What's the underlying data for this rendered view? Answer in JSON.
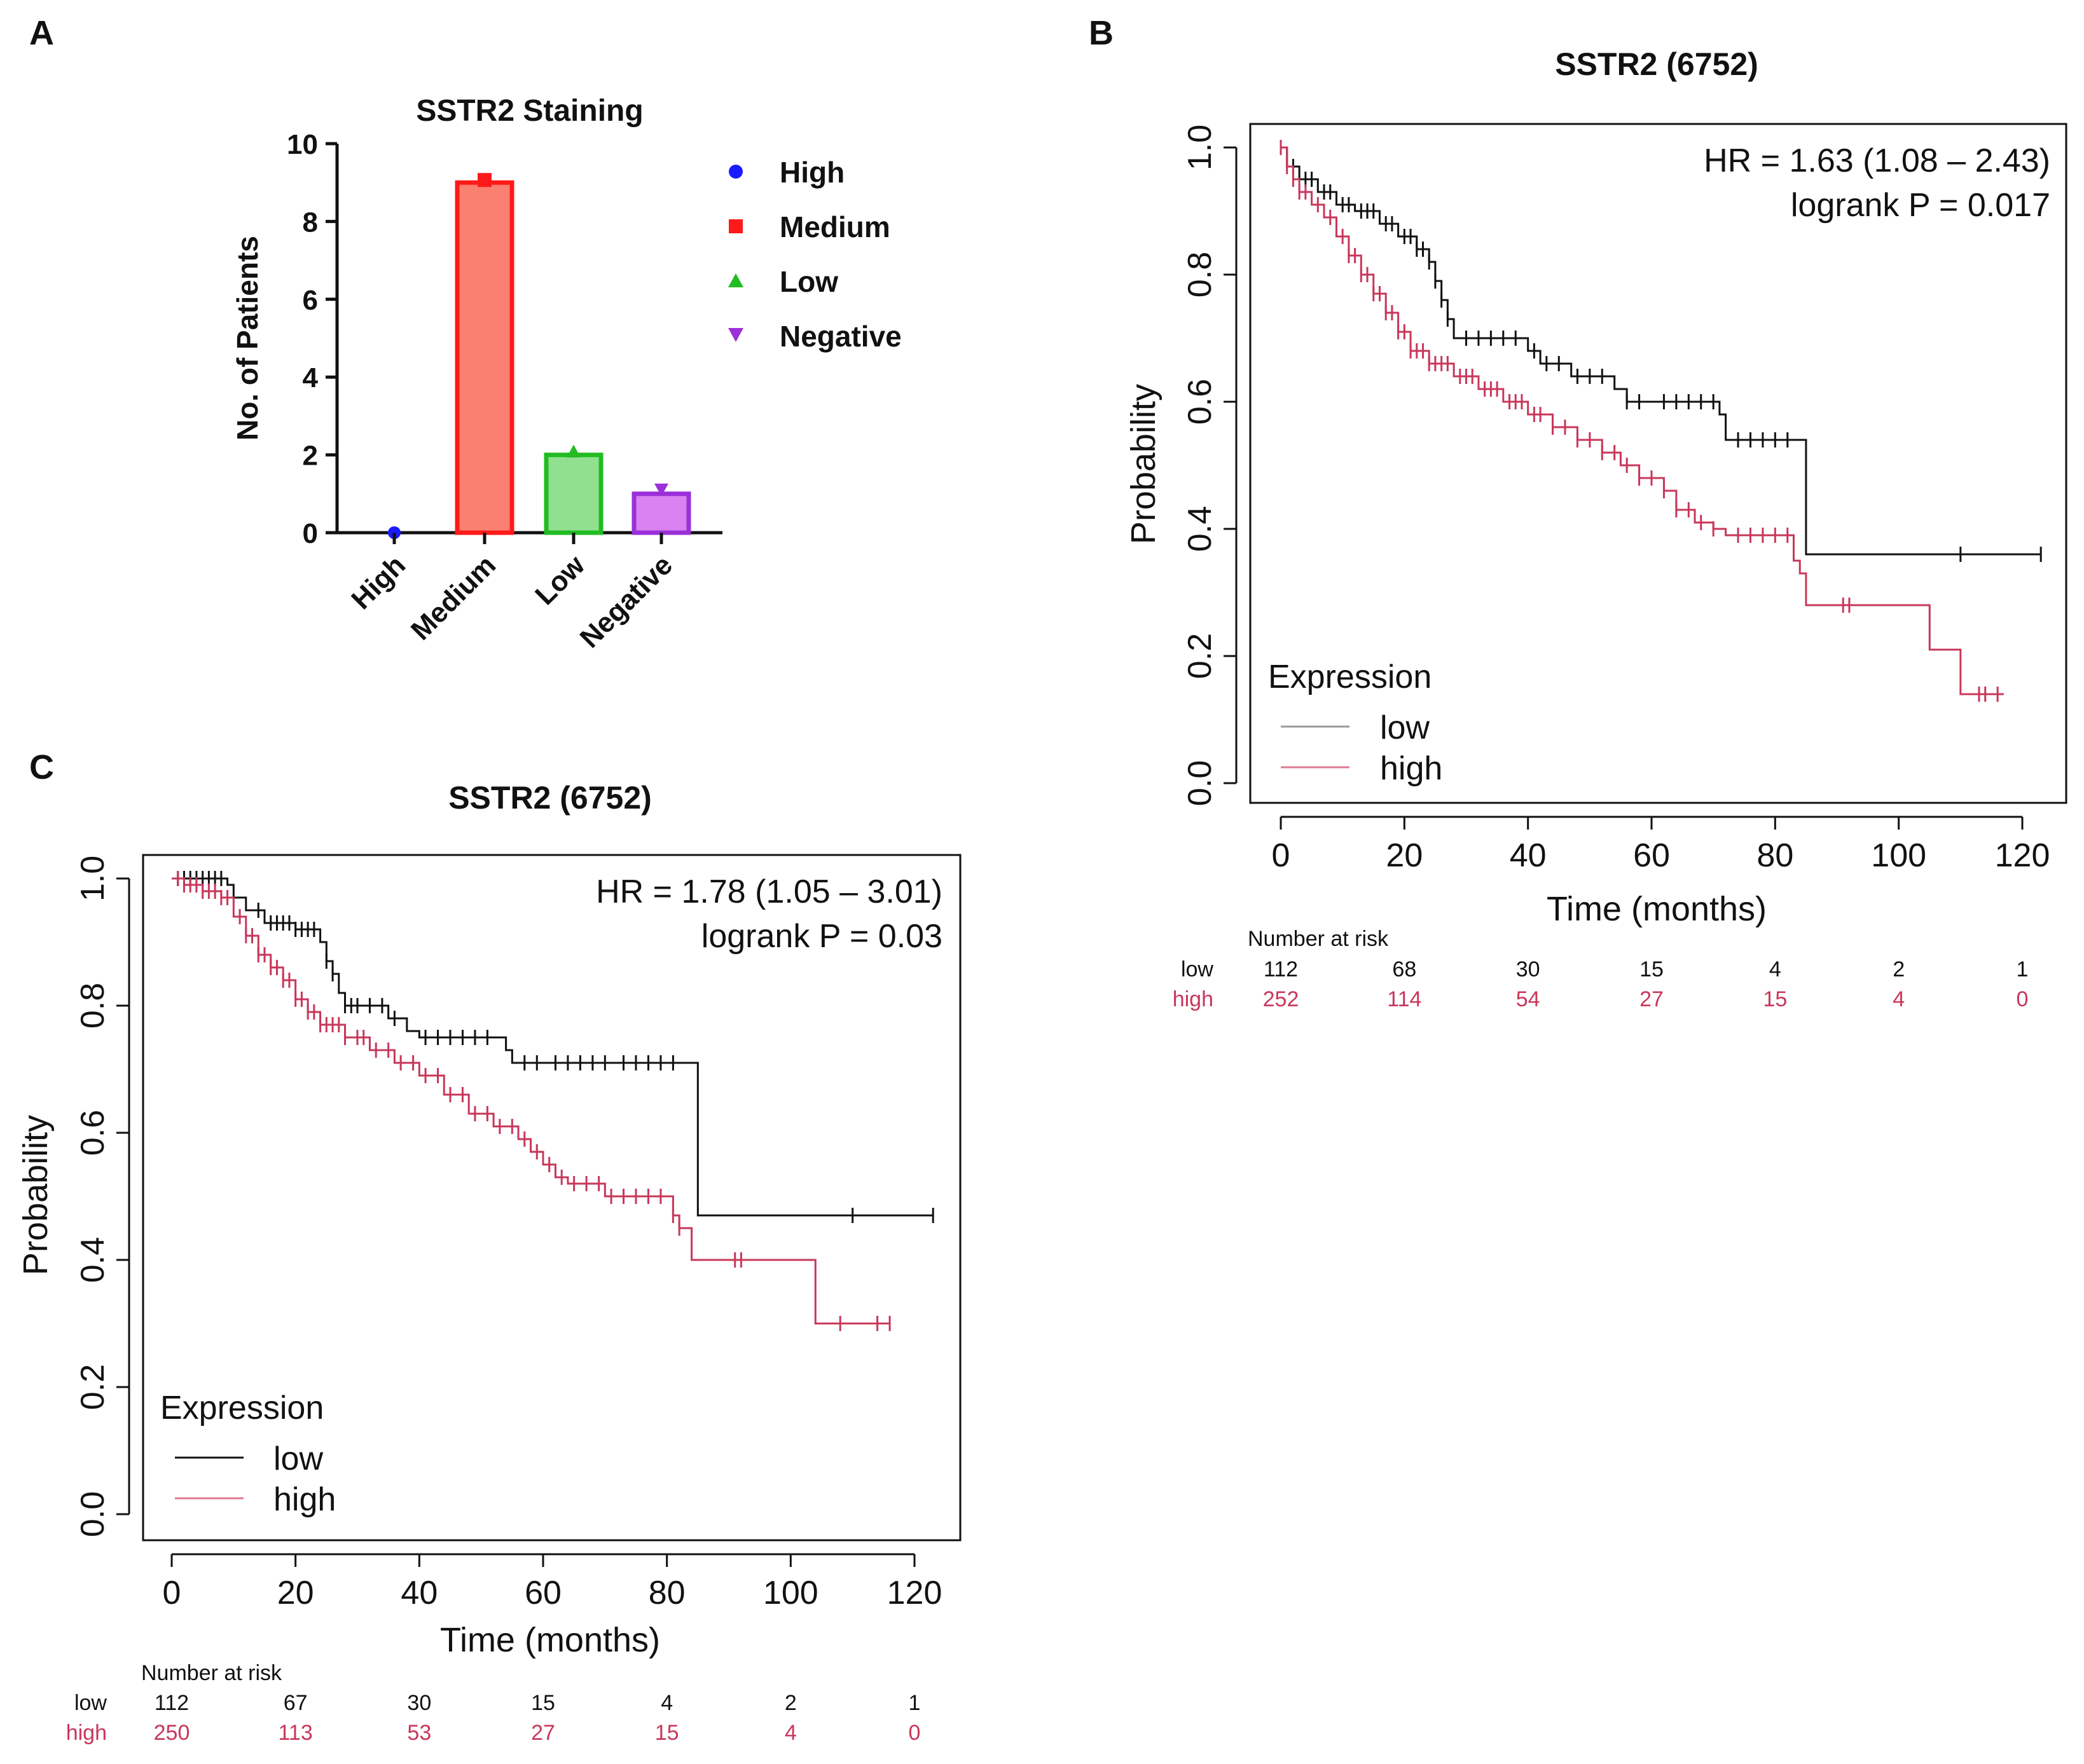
{
  "panels": {
    "a": "A",
    "b": "B",
    "c": "C"
  },
  "chart_data": [
    {
      "panel": "A",
      "type": "bar",
      "title": "SSTR2 Staining",
      "xlabel": "",
      "ylabel": "No. of Patients",
      "categories": [
        "High",
        "Medium",
        "Low",
        "Negative"
      ],
      "values": [
        0,
        9,
        2,
        1
      ],
      "ylim": [
        0,
        10
      ],
      "yticks": [
        "0",
        "2",
        "4",
        "6",
        "8",
        "10"
      ],
      "legend": [
        {
          "label": "High",
          "marker": "circle",
          "color": "#1a1aff"
        },
        {
          "label": "Medium",
          "marker": "square",
          "color": "#ff1a1a"
        },
        {
          "label": "Low",
          "marker": "triangle-up",
          "color": "#22bb22"
        },
        {
          "label": "Negative",
          "marker": "triangle-down",
          "color": "#9b30d9"
        }
      ],
      "bar_fills": [
        "#1a1aff",
        "#fa8072",
        "#90e090",
        "#d982f0"
      ],
      "bar_strokes": [
        "#1a1aff",
        "#ff1a1a",
        "#22bb22",
        "#9b30d9"
      ]
    },
    {
      "panel": "B",
      "type": "line",
      "title": "SSTR2 (6752)",
      "xlabel": "Time (months)",
      "ylabel": "Probability",
      "xlim": [
        0,
        120
      ],
      "ylim": [
        0,
        1
      ],
      "xticks": [
        "0",
        "20",
        "40",
        "60",
        "80",
        "100",
        "120"
      ],
      "yticks": [
        "0.0",
        "0.2",
        "0.4",
        "0.6",
        "0.8",
        "1.0"
      ],
      "hr_text": "HR = 1.63 (1.08 – 2.43)",
      "logrank_text": "logrank P = 0.017",
      "legend_title": "Expression",
      "series": [
        {
          "name": "low",
          "color": "#111111",
          "steps": [
            [
              0,
              1.0
            ],
            [
              1,
              0.97
            ],
            [
              3,
              0.95
            ],
            [
              6,
              0.93
            ],
            [
              9,
              0.91
            ],
            [
              12,
              0.9
            ],
            [
              16,
              0.88
            ],
            [
              19,
              0.86
            ],
            [
              22,
              0.84
            ],
            [
              24,
              0.82
            ],
            [
              25,
              0.79
            ],
            [
              26,
              0.76
            ],
            [
              27,
              0.73
            ],
            [
              28,
              0.7
            ],
            [
              40,
              0.68
            ],
            [
              42,
              0.66
            ],
            [
              47,
              0.64
            ],
            [
              54,
              0.62
            ],
            [
              56,
              0.6
            ],
            [
              71,
              0.58
            ],
            [
              72,
              0.54
            ],
            [
              84,
              0.54
            ],
            [
              85,
              0.36
            ],
            [
              123,
              0.36
            ]
          ],
          "censor": [
            2,
            4,
            5,
            7,
            8,
            10,
            11,
            13,
            14,
            15,
            17,
            18,
            20,
            21,
            22,
            23,
            24,
            25,
            26,
            27,
            30,
            32,
            34,
            36,
            38,
            41,
            43,
            45,
            48,
            50,
            52,
            56,
            58,
            62,
            64,
            66,
            68,
            70,
            74,
            76,
            78,
            80,
            82,
            110,
            123
          ]
        },
        {
          "name": "high",
          "color": "#c8375a",
          "steps": [
            [
              0,
              1.0
            ],
            [
              1,
              0.97
            ],
            [
              2,
              0.95
            ],
            [
              3,
              0.93
            ],
            [
              5,
              0.91
            ],
            [
              7,
              0.89
            ],
            [
              9,
              0.86
            ],
            [
              11,
              0.83
            ],
            [
              13,
              0.8
            ],
            [
              15,
              0.77
            ],
            [
              17,
              0.74
            ],
            [
              19,
              0.71
            ],
            [
              21,
              0.68
            ],
            [
              24,
              0.66
            ],
            [
              28,
              0.64
            ],
            [
              32,
              0.62
            ],
            [
              36,
              0.6
            ],
            [
              40,
              0.58
            ],
            [
              44,
              0.56
            ],
            [
              48,
              0.54
            ],
            [
              52,
              0.52
            ],
            [
              55,
              0.5
            ],
            [
              58,
              0.48
            ],
            [
              62,
              0.46
            ],
            [
              64,
              0.43
            ],
            [
              67,
              0.41
            ],
            [
              70,
              0.4
            ],
            [
              72,
              0.39
            ],
            [
              82,
              0.39
            ],
            [
              83,
              0.35
            ],
            [
              84,
              0.33
            ],
            [
              85,
              0.28
            ],
            [
              104,
              0.28
            ],
            [
              105,
              0.21
            ],
            [
              109,
              0.21
            ],
            [
              110,
              0.14
            ],
            [
              117,
              0.14
            ]
          ],
          "censor": [
            0,
            1,
            2,
            3,
            4,
            6,
            8,
            10,
            11,
            12,
            13,
            14,
            15,
            16,
            17,
            18,
            19,
            20,
            21,
            22,
            23,
            24,
            25,
            26,
            27,
            29,
            30,
            31,
            33,
            34,
            35,
            37,
            38,
            39,
            41,
            42,
            44,
            46,
            48,
            50,
            52,
            54,
            56,
            58,
            60,
            62,
            64,
            66,
            68,
            70,
            74,
            76,
            78,
            80,
            82,
            91,
            92,
            113,
            114,
            116
          ]
        }
      ],
      "risk_table": {
        "label": "Number at risk",
        "low": {
          "name": "low",
          "values": [
            "112",
            "68",
            "30",
            "15",
            "4",
            "2",
            "1"
          ]
        },
        "high": {
          "name": "high",
          "values": [
            "252",
            "114",
            "54",
            "27",
            "15",
            "4",
            "0"
          ]
        }
      }
    },
    {
      "panel": "C",
      "type": "line",
      "title": "SSTR2 (6752)",
      "xlabel": "Time (months)",
      "ylabel": "Probability",
      "xlim": [
        0,
        120
      ],
      "ylim": [
        0,
        1
      ],
      "xticks": [
        "0",
        "20",
        "40",
        "60",
        "80",
        "100",
        "120"
      ],
      "yticks": [
        "0.0",
        "0.2",
        "0.4",
        "0.6",
        "0.8",
        "1.0"
      ],
      "hr_text": "HR = 1.78 (1.05 – 3.01)",
      "logrank_text": "logrank P = 0.03",
      "legend_title": "Expression",
      "series": [
        {
          "name": "low",
          "color": "#111111",
          "steps": [
            [
              0,
              1.0
            ],
            [
              9,
              0.99
            ],
            [
              10,
              0.97
            ],
            [
              12,
              0.95
            ],
            [
              15,
              0.93
            ],
            [
              20,
              0.92
            ],
            [
              24,
              0.9
            ],
            [
              25,
              0.87
            ],
            [
              26,
              0.85
            ],
            [
              27,
              0.82
            ],
            [
              28,
              0.8
            ],
            [
              35,
              0.78
            ],
            [
              38,
              0.76
            ],
            [
              40,
              0.75
            ],
            [
              54,
              0.73
            ],
            [
              55,
              0.71
            ],
            [
              84,
              0.71
            ],
            [
              85,
              0.47
            ],
            [
              123,
              0.47
            ]
          ],
          "censor": [
            1,
            2,
            3,
            4,
            5,
            6,
            7,
            8,
            14,
            16,
            17,
            18,
            19,
            20,
            21,
            22,
            23,
            25,
            26,
            28,
            29,
            30,
            32,
            34,
            36,
            41,
            43,
            45,
            47,
            49,
            51,
            57,
            59,
            62,
            64,
            66,
            68,
            70,
            73,
            75,
            77,
            79,
            81,
            110,
            123
          ]
        },
        {
          "name": "high",
          "color": "#c8375a",
          "steps": [
            [
              0,
              1.0
            ],
            [
              2,
              0.99
            ],
            [
              5,
              0.98
            ],
            [
              8,
              0.97
            ],
            [
              10,
              0.94
            ],
            [
              12,
              0.91
            ],
            [
              14,
              0.88
            ],
            [
              16,
              0.86
            ],
            [
              18,
              0.84
            ],
            [
              20,
              0.81
            ],
            [
              22,
              0.79
            ],
            [
              24,
              0.77
            ],
            [
              28,
              0.75
            ],
            [
              32,
              0.73
            ],
            [
              36,
              0.71
            ],
            [
              40,
              0.69
            ],
            [
              44,
              0.66
            ],
            [
              48,
              0.63
            ],
            [
              52,
              0.61
            ],
            [
              56,
              0.59
            ],
            [
              58,
              0.57
            ],
            [
              60,
              0.55
            ],
            [
              62,
              0.53
            ],
            [
              64,
              0.52
            ],
            [
              70,
              0.5
            ],
            [
              79,
              0.5
            ],
            [
              81,
              0.47
            ],
            [
              82,
              0.45
            ],
            [
              84,
              0.4
            ],
            [
              103,
              0.4
            ],
            [
              104,
              0.3
            ],
            [
              116,
              0.3
            ]
          ],
          "censor": [
            1,
            2,
            3,
            4,
            5,
            6,
            7,
            8,
            9,
            11,
            12,
            13,
            14,
            15,
            16,
            17,
            18,
            19,
            20,
            21,
            22,
            23,
            24,
            25,
            26,
            27,
            28,
            30,
            31,
            33,
            35,
            37,
            39,
            41,
            43,
            45,
            47,
            49,
            51,
            53,
            55,
            57,
            59,
            61,
            63,
            65,
            67,
            69,
            71,
            73,
            75,
            77,
            79,
            81,
            82,
            91,
            92,
            108,
            114,
            116
          ]
        }
      ],
      "risk_table": {
        "label": "Number at risk",
        "low": {
          "name": "low",
          "values": [
            "112",
            "67",
            "30",
            "15",
            "4",
            "2",
            "1"
          ]
        },
        "high": {
          "name": "high",
          "values": [
            "250",
            "113",
            "53",
            "27",
            "15",
            "4",
            "0"
          ]
        }
      }
    }
  ]
}
